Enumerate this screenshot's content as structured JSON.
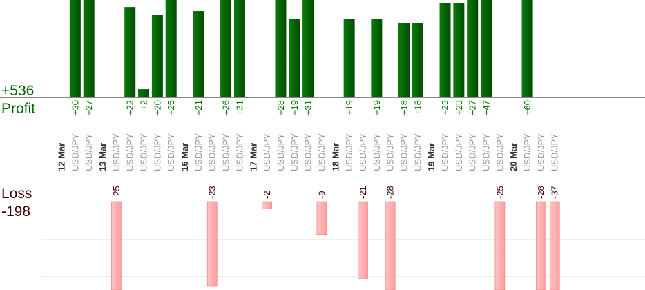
{
  "chart_data": {
    "type": "bar",
    "profit": {
      "label": "Profit",
      "total": "+536",
      "color": "#006400"
    },
    "loss": {
      "label": "Loss",
      "total": "-198",
      "color": "#ffb3b3"
    },
    "grid": true,
    "days": [
      {
        "date": "12 Mar",
        "trades": [
          {
            "pair": "USD/JPY",
            "value": 30
          },
          {
            "pair": "USD/JPY",
            "value": 27
          }
        ]
      },
      {
        "date": "13 Mar",
        "trades": [
          {
            "pair": "USD/JPY",
            "value": -25
          },
          {
            "pair": "USD/JPY",
            "value": 22
          },
          {
            "pair": "USD/JPY",
            "value": 2
          },
          {
            "pair": "USD/JPY",
            "value": 20
          },
          {
            "pair": "USD/JPY",
            "value": 25
          }
        ]
      },
      {
        "date": "16 Mar",
        "trades": [
          {
            "pair": "USD/JPY",
            "value": 21
          },
          {
            "pair": "USD/JPY",
            "value": -23
          },
          {
            "pair": "USD/JPY",
            "value": 26
          },
          {
            "pair": "USD/JPY",
            "value": 31
          }
        ]
      },
      {
        "date": "17 Mar",
        "trades": [
          {
            "pair": "USD/JPY",
            "value": -2
          },
          {
            "pair": "USD/JPY",
            "value": 28
          },
          {
            "pair": "USD/JPY",
            "value": 19
          },
          {
            "pair": "USD/JPY",
            "value": 31
          },
          {
            "pair": "USD/JPY",
            "value": -9
          }
        ]
      },
      {
        "date": "18 Mar",
        "trades": [
          {
            "pair": "USD/JPY",
            "value": 19
          },
          {
            "pair": "USD/JPY",
            "value": -21
          },
          {
            "pair": "USD/JPY",
            "value": 19
          },
          {
            "pair": "USD/JPY",
            "value": -28
          },
          {
            "pair": "USD/JPY",
            "value": 18
          },
          {
            "pair": "USD/JPY",
            "value": 18
          }
        ]
      },
      {
        "date": "19 Mar",
        "trades": [
          {
            "pair": "USD/JPY",
            "value": 23
          },
          {
            "pair": "USD/JPY",
            "value": 23
          },
          {
            "pair": "USD/JPY",
            "value": 27
          },
          {
            "pair": "USD/JPY",
            "value": 47
          },
          {
            "pair": "USD/JPY",
            "value": -25
          }
        ]
      },
      {
        "date": "20 Mar",
        "trades": [
          {
            "pair": "USD/JPY",
            "value": 60
          },
          {
            "pair": "USD/JPY",
            "value": -28
          },
          {
            "pair": "USD/JPY",
            "value": -37
          }
        ]
      }
    ]
  }
}
